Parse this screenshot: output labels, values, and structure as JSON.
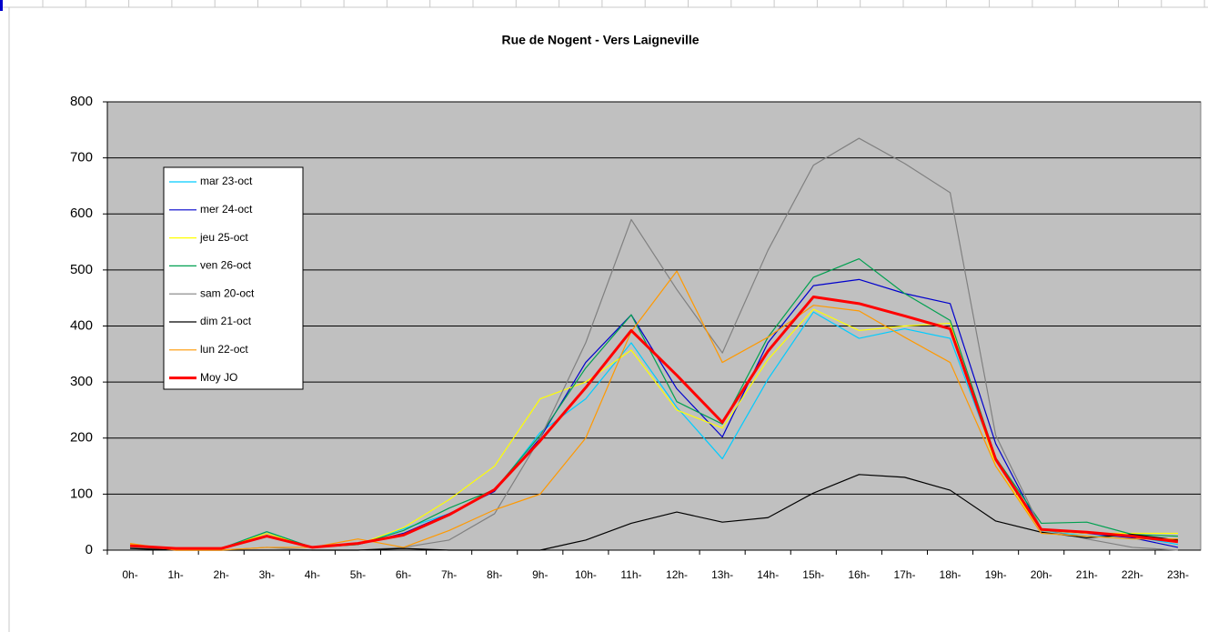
{
  "chart_data": {
    "type": "line",
    "title": "Rue de Nogent - Vers Laigneville",
    "categories": [
      "0h-",
      "1h-",
      "2h-",
      "3h-",
      "4h-",
      "5h-",
      "6h-",
      "7h-",
      "8h-",
      "9h-",
      "10h-",
      "11h-",
      "12h-",
      "13h-",
      "14h-",
      "15h-",
      "16h-",
      "17h-",
      "18h-",
      "19h-",
      "20h-",
      "21h-",
      "22h-",
      "23h-"
    ],
    "series": [
      {
        "name": "mar 23-oct",
        "color": "#00ccff",
        "values": [
          5,
          3,
          3,
          33,
          5,
          10,
          38,
          65,
          105,
          210,
          270,
          370,
          255,
          163,
          305,
          425,
          378,
          395,
          378,
          160,
          35,
          25,
          25,
          10
        ]
      },
      {
        "name": "mer 24-oct",
        "color": "#0000cc",
        "values": [
          5,
          3,
          3,
          30,
          5,
          10,
          30,
          65,
          105,
          200,
          335,
          420,
          288,
          202,
          370,
          472,
          483,
          458,
          440,
          190,
          35,
          30,
          22,
          5
        ]
      },
      {
        "name": "jeu 25-oct",
        "color": "#ffff00",
        "values": [
          10,
          3,
          3,
          30,
          5,
          10,
          40,
          90,
          150,
          270,
          300,
          357,
          250,
          218,
          340,
          430,
          392,
          400,
          405,
          150,
          35,
          30,
          30,
          30
        ]
      },
      {
        "name": "ven 26-oct",
        "color": "#00a050",
        "values": [
          5,
          3,
          3,
          33,
          5,
          10,
          35,
          75,
          108,
          205,
          325,
          420,
          265,
          225,
          380,
          487,
          520,
          458,
          410,
          165,
          48,
          50,
          28,
          25
        ]
      },
      {
        "name": "sam 20-oct",
        "color": "#808080",
        "values": [
          5,
          0,
          0,
          5,
          0,
          0,
          5,
          18,
          65,
          200,
          370,
          590,
          465,
          352,
          535,
          687,
          735,
          690,
          638,
          205,
          38,
          20,
          5,
          0
        ]
      },
      {
        "name": "dim 21-oct",
        "color": "#000000",
        "values": [
          3,
          0,
          0,
          0,
          0,
          0,
          3,
          0,
          0,
          0,
          18,
          48,
          68,
          50,
          58,
          102,
          135,
          130,
          107,
          52,
          32,
          22,
          28,
          18
        ]
      },
      {
        "name": "lun 22-oct",
        "color": "#ff9900",
        "values": [
          12,
          0,
          0,
          5,
          5,
          20,
          5,
          35,
          72,
          100,
          200,
          390,
          498,
          335,
          380,
          437,
          427,
          380,
          335,
          150,
          30,
          25,
          20,
          20
        ]
      },
      {
        "name": "Moy JO",
        "color": "#ff0000",
        "width": 3,
        "values": [
          8,
          3,
          3,
          25,
          5,
          12,
          27,
          63,
          108,
          195,
          290,
          392,
          312,
          228,
          355,
          452,
          440,
          418,
          395,
          162,
          37,
          32,
          25,
          15
        ]
      }
    ],
    "ylim": [
      0,
      800
    ],
    "yticks": [
      0,
      100,
      200,
      300,
      400,
      500,
      600,
      700,
      800
    ],
    "grid": true,
    "background": "#c0c0c0"
  }
}
